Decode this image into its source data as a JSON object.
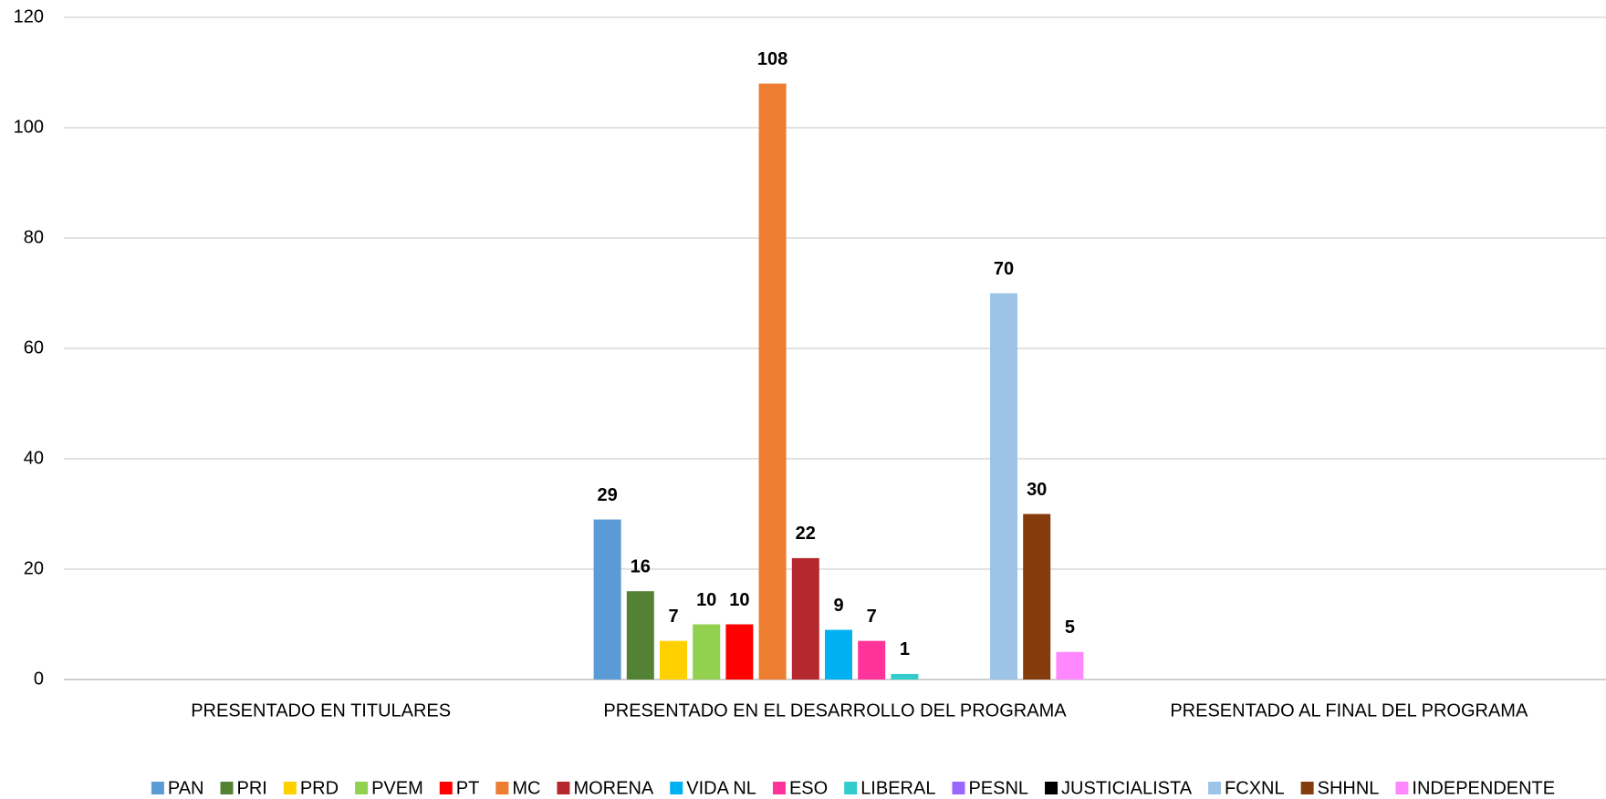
{
  "chart_data": {
    "type": "bar",
    "categories": [
      "PRESENTADO EN TITULARES",
      "PRESENTADO EN EL DESARROLLO DEL PROGRAMA",
      "PRESENTADO AL FINAL DEL PROGRAMA"
    ],
    "series": [
      {
        "name": "PAN",
        "color": "#5b9bd5",
        "values": [
          null,
          29,
          null
        ]
      },
      {
        "name": "PRI",
        "color": "#548235",
        "values": [
          null,
          16,
          null
        ]
      },
      {
        "name": "PRD",
        "color": "#ffd000",
        "values": [
          null,
          7,
          null
        ]
      },
      {
        "name": "PVEM",
        "color": "#92d050",
        "values": [
          null,
          10,
          null
        ]
      },
      {
        "name": "PT",
        "color": "#ff0000",
        "values": [
          null,
          10,
          null
        ]
      },
      {
        "name": "MC",
        "color": "#ed7d31",
        "values": [
          null,
          108,
          null
        ]
      },
      {
        "name": "MORENA",
        "color": "#b4282e",
        "values": [
          null,
          22,
          null
        ]
      },
      {
        "name": "VIDA NL",
        "color": "#00b0f0",
        "values": [
          null,
          9,
          null
        ]
      },
      {
        "name": "ESO",
        "color": "#ff3399",
        "values": [
          null,
          7,
          null
        ]
      },
      {
        "name": "LIBERAL",
        "color": "#33cccc",
        "values": [
          null,
          1,
          null
        ]
      },
      {
        "name": "PESNL",
        "color": "#9966ff",
        "values": [
          null,
          null,
          null
        ]
      },
      {
        "name": "JUSTICIALISTA",
        "color": "#000000",
        "values": [
          null,
          null,
          null
        ]
      },
      {
        "name": "FCXNL",
        "color": "#9dc3e6",
        "values": [
          null,
          70,
          null
        ]
      },
      {
        "name": "SHHNL",
        "color": "#843c0c",
        "values": [
          null,
          30,
          null
        ]
      },
      {
        "name": "INDEPENDENTE",
        "color": "#ff88ff",
        "values": [
          null,
          5,
          null
        ]
      }
    ],
    "ylim": [
      0,
      120
    ],
    "yticks": [
      0,
      20,
      40,
      60,
      80,
      100,
      120
    ],
    "grid": true,
    "legend": "bottom"
  }
}
